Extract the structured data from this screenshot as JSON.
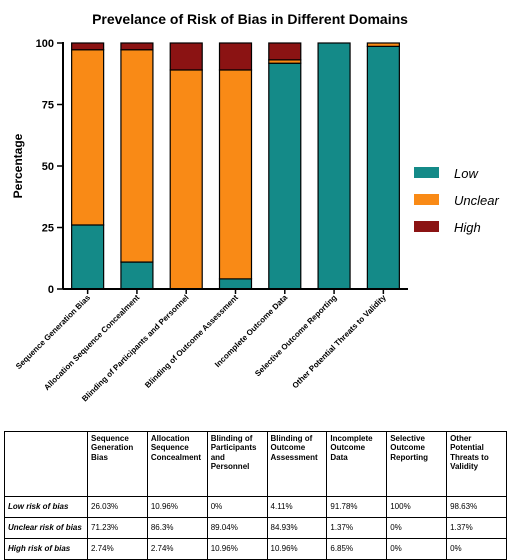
{
  "chart_data": {
    "type": "bar",
    "stacked": true,
    "title": "Prevelance of Risk of Bias in Different Domains",
    "xlabel": "",
    "ylabel": "Percentage",
    "ylim": [
      0,
      100
    ],
    "yticks": [
      "0",
      "25",
      "50",
      "75",
      "100"
    ],
    "grid": false,
    "legend_position": "right",
    "categories": [
      "Sequence Generation Bias",
      "Allocation Sequence Concealment",
      "Blinding of Participants and Personnel",
      "Blinding of Outcome Assessment",
      "Incomplete Outcome Data",
      "Selective Outcome Reporting",
      "Other Potential Threats to Validity"
    ],
    "series": [
      {
        "name": "Low",
        "color": "#148a88",
        "values": [
          26.03,
          10.96,
          0,
          4.11,
          91.78,
          100,
          98.63
        ]
      },
      {
        "name": "Unclear",
        "color": "#f98a16",
        "values": [
          71.23,
          86.3,
          89.04,
          84.93,
          1.37,
          0,
          1.37
        ]
      },
      {
        "name": "High",
        "color": "#8b1313",
        "values": [
          2.74,
          2.74,
          10.96,
          10.96,
          6.85,
          0,
          0
        ]
      }
    ]
  },
  "table": {
    "corner": "",
    "headers": [
      "Sequence Generation Bias",
      "Allocation Sequence Concealment",
      "Blinding of Participants and Personnel",
      "Blinding of Outcome Assessment",
      "Incomplete Outcome Data",
      "Selective Outcome Reporting",
      "Other Potential Threats to Validity"
    ],
    "rows": [
      {
        "label": "Low risk of bias",
        "cells": [
          "26.03%",
          "10.96%",
          "0%",
          "4.11%",
          "91.78%",
          "100%",
          "98.63%"
        ]
      },
      {
        "label": "Unclear risk of bias",
        "cells": [
          "71.23%",
          "86.3%",
          "89.04%",
          "84.93%",
          "1.37%",
          "0%",
          "1.37%"
        ]
      },
      {
        "label": "High risk of bias",
        "cells": [
          "2.74%",
          "2.74%",
          "10.96%",
          "10.96%",
          "6.85%",
          "0%",
          "0%"
        ]
      }
    ]
  }
}
